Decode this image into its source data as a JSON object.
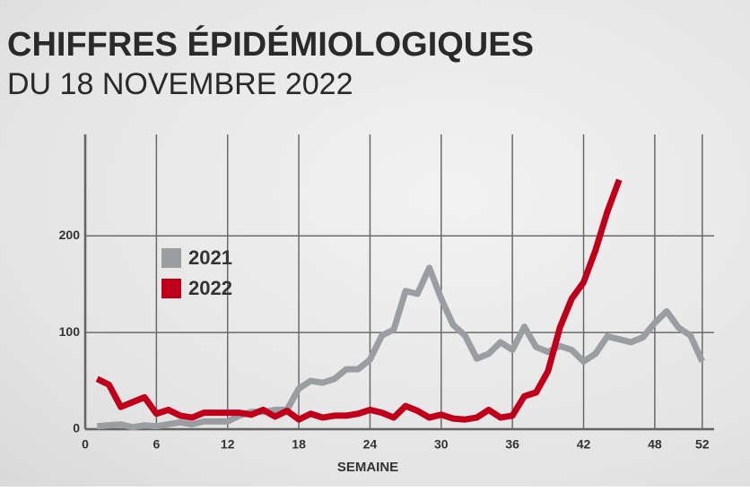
{
  "chart_data": {
    "type": "line",
    "title": "CHIFFRES ÉPIDÉMIOLOGIQUES",
    "subtitle": "DU 18 NOVEMBRE 2022",
    "x_label": "SEMAINE",
    "x": [
      1,
      2,
      3,
      4,
      5,
      6,
      7,
      8,
      9,
      10,
      11,
      12,
      13,
      14,
      15,
      16,
      17,
      18,
      19,
      20,
      21,
      22,
      23,
      24,
      25,
      26,
      27,
      28,
      29,
      30,
      31,
      32,
      33,
      34,
      35,
      36,
      37,
      38,
      39,
      40,
      41,
      42,
      43,
      44,
      45,
      46,
      47,
      48,
      49,
      50,
      51,
      52
    ],
    "xlim": [
      0,
      53
    ],
    "xticks": [
      0,
      6,
      12,
      18,
      24,
      30,
      36,
      42,
      48,
      52
    ],
    "ylim": [
      0,
      305
    ],
    "yticks": [
      0,
      100,
      200
    ],
    "grid": true,
    "legend": "upper left",
    "series": [
      {
        "name": "2021",
        "color": "#9a9ea3",
        "values": [
          3,
          4,
          5,
          2,
          4,
          3,
          5,
          7,
          5,
          8,
          8,
          8,
          14,
          18,
          18,
          20,
          20,
          42,
          50,
          48,
          52,
          62,
          62,
          72,
          97,
          103,
          143,
          140,
          167,
          135,
          108,
          97,
          73,
          78,
          90,
          82,
          106,
          85,
          80,
          86,
          82,
          70,
          78,
          96,
          93,
          90,
          95,
          110,
          122,
          105,
          97,
          70
        ]
      },
      {
        "name": "2022",
        "color": "#c0001a",
        "values": [
          52,
          46,
          23,
          28,
          33,
          16,
          20,
          14,
          12,
          17,
          17,
          17,
          17,
          15,
          20,
          13,
          19,
          10,
          16,
          12,
          14,
          14,
          16,
          20,
          17,
          12,
          24,
          19,
          12,
          15,
          11,
          10,
          12,
          20,
          12,
          14,
          34,
          38,
          60,
          105,
          135,
          152,
          185,
          225,
          258,
          null,
          null,
          null,
          null,
          null,
          null,
          null
        ]
      }
    ]
  }
}
